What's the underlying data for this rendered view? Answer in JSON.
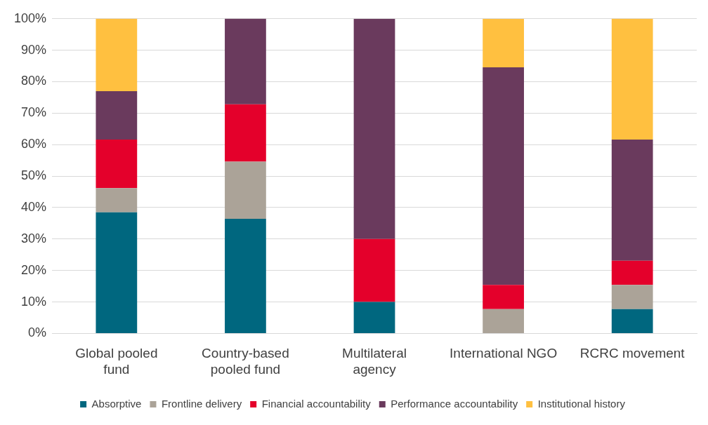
{
  "chart_data": {
    "type": "bar",
    "stacked": true,
    "categories": [
      "Global pooled fund",
      "Country-based pooled fund",
      "Multilateral agency",
      "International NGO",
      "RCRC movement"
    ],
    "series": [
      {
        "name": "Absorptive",
        "color": "#00677f",
        "values": [
          38.5,
          36.4,
          10,
          0,
          7.7
        ]
      },
      {
        "name": "Frontline delivery",
        "color": "#aba398",
        "values": [
          7.7,
          18.2,
          0,
          7.7,
          7.7
        ]
      },
      {
        "name": "Financial accountability",
        "color": "#e4002b",
        "values": [
          15.4,
          18.2,
          20,
          7.7,
          7.7
        ]
      },
      {
        "name": "Performance accountability",
        "color": "#6a3a5d",
        "values": [
          15.4,
          27.3,
          70,
          69.2,
          38.5
        ]
      },
      {
        "name": "Institutional history",
        "color": "#ffc040",
        "values": [
          23.1,
          0,
          0,
          15.4,
          38.5
        ]
      }
    ],
    "ylim": [
      0,
      100
    ],
    "yticks": [
      {
        "value": 0,
        "label": "0%"
      },
      {
        "value": 10,
        "label": "10%"
      },
      {
        "value": 20,
        "label": "20%"
      },
      {
        "value": 30,
        "label": "30%"
      },
      {
        "value": 40,
        "label": "40%"
      },
      {
        "value": 50,
        "label": "50%"
      },
      {
        "value": 60,
        "label": "60%"
      },
      {
        "value": 70,
        "label": "70%"
      },
      {
        "value": 80,
        "label": "80%"
      },
      {
        "value": 90,
        "label": "90%"
      },
      {
        "value": 100,
        "label": "100%"
      }
    ],
    "grid": "y",
    "legend": "bottom"
  }
}
